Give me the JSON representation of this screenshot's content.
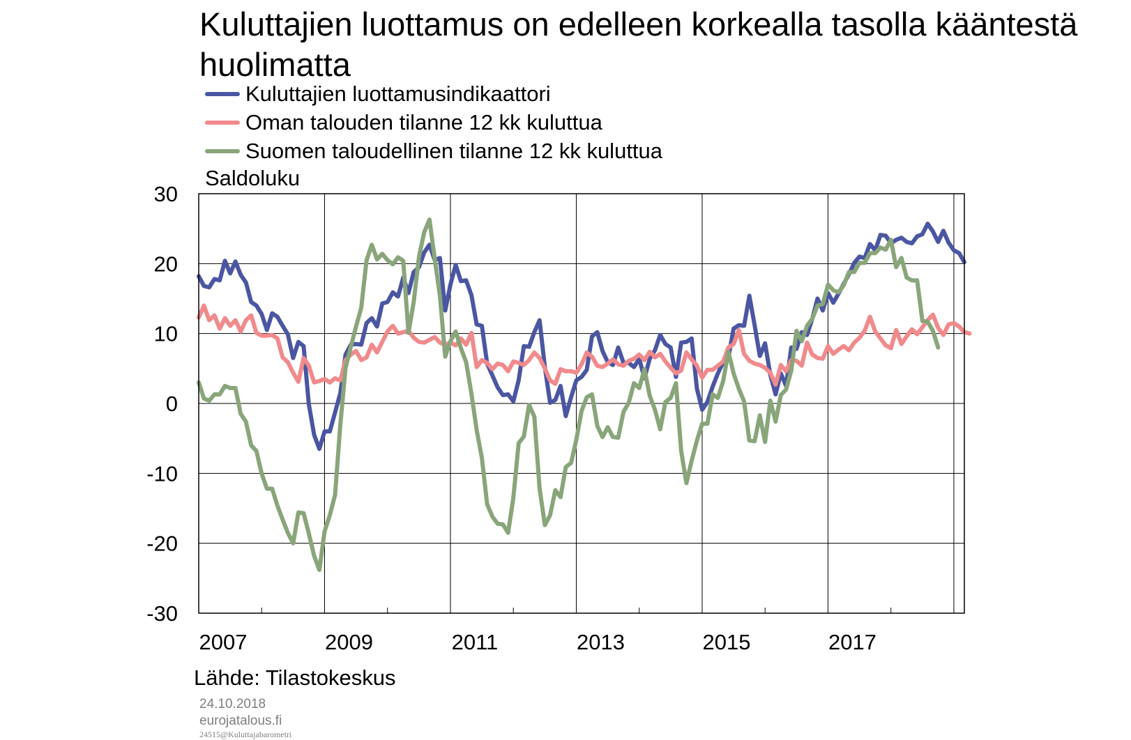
{
  "title": "Kuluttajien luottamus on edelleen korkealla tasolla kaanteesta huolimatta",
  "source": "Lähde:  Tilastokeskus",
  "footer": {
    "date": "24.10.2018",
    "site": "eurojatalous.fi",
    "code": "24515@Kuluttajabarometri"
  },
  "chart_data": {
    "type": "line",
    "title": "Kuluttajien luottamus on edelleen korkealla tasolla kääntestä huolimatta",
    "ylabel": "Saldoluku",
    "xlabel": "",
    "ylim": [
      -30,
      30
    ],
    "yticks": [
      "30",
      "20",
      "10",
      "0",
      "-10",
      "-20",
      "-30"
    ],
    "xticks": [
      "2007",
      "2009",
      "2011",
      "2013",
      "2015",
      "2017"
    ],
    "x_start": "2007-01",
    "x_end": "2018-10",
    "grid": true,
    "legend_position": "top-left",
    "series": [
      {
        "name": "Kuluttajien luottamusindikaattori",
        "color": "#4B56A2",
        "values": [
          18.2,
          16.8,
          16.6,
          17.8,
          17.6,
          20.4,
          18.6,
          20.3,
          18.4,
          17.3,
          14.5,
          14.0,
          12.8,
          10.5,
          12.9,
          12.4,
          11.1,
          9.9,
          6.5,
          8.8,
          8.2,
          -0.1,
          -4.5,
          -6.5,
          -4.0,
          -4.0,
          -1.3,
          1.5,
          7.0,
          8.4,
          8.5,
          8.4,
          11.5,
          12.2,
          11.0,
          14.3,
          14.5,
          15.9,
          15.3,
          18.0,
          15.8,
          18.8,
          19.5,
          21.6,
          22.7,
          20.5,
          20.8,
          13.3,
          17.0,
          19.8,
          17.5,
          17.6,
          15.5,
          11.3,
          11.1,
          5.7,
          4.0,
          2.3,
          1.2,
          1.3,
          0.3,
          3.3,
          8.2,
          8.1,
          10.2,
          11.9,
          5.2,
          0.1,
          0.5,
          2.5,
          -1.8,
          0.9,
          3.3,
          3.8,
          4.8,
          9.6,
          10.2,
          7.5,
          5.9,
          5.5,
          8.0,
          5.8,
          5.8,
          5.2,
          6.4,
          3.6,
          6.4,
          7.6,
          9.8,
          8.5,
          8.0,
          3.8,
          8.7,
          8.8,
          9.3,
          2.1,
          -0.9,
          0.2,
          2.4,
          4.3,
          5.9,
          6.6,
          10.7,
          11.2,
          11.1,
          15.4,
          11.2,
          6.8,
          8.6,
          4.1,
          1.3,
          4.3,
          2.5,
          8.0,
          7.8,
          10.2,
          9.8,
          12.1,
          15.0,
          13.3,
          15.8,
          14.4,
          15.7,
          17.1,
          18.5,
          20.1,
          21.0,
          20.8,
          22.8,
          21.9,
          24.1,
          24.0,
          22.9,
          23.4,
          23.7,
          23.1,
          22.9,
          23.9,
          24.2,
          25.7,
          24.6,
          23.1,
          24.7,
          23.0,
          21.9,
          21.5,
          20.2
        ]
      },
      {
        "name": "Oman talouden tilanne 12 kk kuluttua",
        "color": "#F08A8C",
        "values": [
          12.3,
          14.0,
          11.9,
          12.6,
          10.7,
          12.2,
          11.1,
          11.9,
          10.3,
          11.9,
          12.6,
          10.1,
          9.7,
          9.7,
          9.8,
          9.3,
          6.6,
          5.9,
          4.4,
          3.1,
          6.5,
          5.4,
          3.0,
          3.2,
          3.5,
          3.0,
          3.6,
          3.3,
          6.2,
          7.0,
          7.5,
          6.2,
          6.6,
          8.4,
          7.3,
          8.8,
          10.3,
          11.1,
          10.0,
          10.2,
          10.4,
          9.4,
          8.8,
          8.7,
          9.1,
          9.5,
          8.7,
          8.4,
          8.7,
          8.3,
          9.3,
          8.4,
          10.1,
          5.2,
          6.2,
          5.8,
          4.9,
          5.7,
          5.5,
          4.6,
          6.0,
          5.8,
          5.5,
          6.2,
          7.3,
          6.5,
          5.0,
          3.3,
          2.8,
          4.9,
          4.6,
          4.6,
          4.4,
          5.6,
          7.3,
          6.7,
          5.4,
          5.2,
          5.7,
          6.3,
          5.6,
          5.4,
          6.1,
          6.4,
          7.0,
          6.2,
          7.4,
          6.6,
          7.1,
          6.0,
          5.1,
          4.3,
          4.7,
          7.3,
          6.3,
          5.4,
          3.7,
          4.8,
          4.8,
          5.4,
          6.0,
          8.0,
          8.5,
          10.5,
          7.1,
          6.1,
          5.7,
          5.5,
          5.1,
          4.4,
          2.7,
          5.5,
          4.6,
          6.2,
          6.1,
          5.4,
          8.7,
          7.0,
          6.5,
          6.4,
          8.2,
          7.1,
          7.7,
          8.2,
          7.6,
          8.7,
          9.4,
          10.4,
          12.4,
          10.3,
          9.3,
          8.3,
          7.9,
          10.5,
          8.5,
          9.6,
          10.6,
          9.9,
          10.9,
          11.9,
          12.7,
          10.8,
          9.8,
          11.3,
          11.5,
          11.0,
          10.2,
          10.0
        ]
      },
      {
        "name": "Suomen taloudellinen tilanne 12 kk kuluttua",
        "color": "#89A57A",
        "values": [
          3.0,
          0.7,
          0.4,
          1.3,
          1.3,
          2.5,
          2.2,
          2.2,
          -1.5,
          -2.6,
          -6.0,
          -6.8,
          -10.0,
          -12.2,
          -12.2,
          -14.6,
          -16.6,
          -18.5,
          -20.0,
          -15.6,
          -15.7,
          -18.6,
          -21.8,
          -23.8,
          -18.3,
          -16.0,
          -13.1,
          -3.0,
          5.1,
          8.1,
          11.0,
          13.7,
          20.5,
          22.7,
          20.6,
          21.4,
          20.5,
          19.9,
          20.9,
          20.4,
          10.1,
          14.5,
          21.0,
          24.5,
          26.3,
          20.7,
          15.4,
          6.7,
          8.9,
          10.3,
          7.9,
          5.9,
          1.4,
          -3.8,
          -7.8,
          -14.4,
          -16.2,
          -17.2,
          -17.3,
          -18.5,
          -13.5,
          -5.7,
          -4.7,
          -0.2,
          -1.9,
          -12.1,
          -17.4,
          -16.0,
          -12.4,
          -13.4,
          -9.1,
          -8.5,
          -5.2,
          -1.1,
          0.9,
          1.3,
          -3.2,
          -4.8,
          -3.4,
          -4.8,
          -4.9,
          -1.2,
          0.1,
          2.9,
          2.2,
          4.9,
          1.1,
          -0.9,
          -3.7,
          0.2,
          0.8,
          2.9,
          -6.8,
          -11.4,
          -8.2,
          -5.3,
          -2.9,
          -2.9,
          1.3,
          0.8,
          3.2,
          7.4,
          4.3,
          2.1,
          0.3,
          -5.3,
          -5.4,
          -1.7,
          -5.5,
          0.4,
          -2.6,
          1.2,
          2.0,
          4.7,
          10.4,
          8.9,
          11.1,
          12.1,
          14.0,
          14.2,
          17.0,
          16.2,
          15.9,
          16.9,
          18.8,
          18.8,
          20.1,
          20.1,
          21.5,
          21.5,
          22.3,
          22.0,
          23.4,
          19.5,
          20.8,
          18.0,
          17.6,
          17.6,
          11.8,
          11.7,
          10.4,
          8.0
        ]
      }
    ]
  }
}
